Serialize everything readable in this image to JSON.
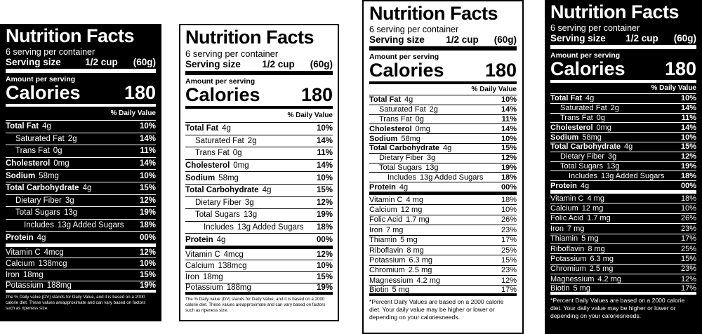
{
  "labels": [
    {
      "variant": "dark",
      "title": "Nutrition Facts",
      "servings": "6 serving per container",
      "serving_size_label": "Serving size",
      "serving_size_value": "1/2 cup",
      "serving_size_grams": "(60g)",
      "amount_per_serving": "Amount per serving",
      "calories_label": "Calories",
      "calories_value": "180",
      "daily_value_header": "% Daily Value",
      "nutrients": [
        {
          "name": "Total Fat",
          "amount": "4g",
          "pct": "10%",
          "bold": true,
          "indent": 0
        },
        {
          "name": "Saturated Fat",
          "amount": "2g",
          "pct": "14%",
          "bold": false,
          "indent": 1
        },
        {
          "name": "Trans Fat",
          "amount": "0g",
          "pct": "11%",
          "bold": false,
          "indent": 1
        },
        {
          "name": "Cholesterol",
          "amount": "0mg",
          "pct": "14%",
          "bold": true,
          "indent": 0
        },
        {
          "name": "Sodium",
          "amount": "58mg",
          "pct": "10%",
          "bold": true,
          "indent": 0
        },
        {
          "name": "Total Carbohydrate",
          "amount": "4g",
          "pct": "15%",
          "bold": true,
          "indent": 0
        },
        {
          "name": "Dietary Fiber",
          "amount": "3g",
          "pct": "12%",
          "bold": false,
          "indent": 1
        },
        {
          "name": "Total Sugars",
          "amount": "13g",
          "pct": "19%",
          "bold": false,
          "indent": 1
        },
        {
          "name": "Includes",
          "amount": "13g Added Sugars",
          "pct": "18%",
          "bold": false,
          "indent": 2
        },
        {
          "name": "Protein",
          "amount": "4g",
          "pct": "00%",
          "bold": true,
          "indent": 0
        }
      ],
      "vitamins": [
        {
          "name": "Vitamin C",
          "amount": "4mcg",
          "pct": "12%"
        },
        {
          "name": "Calcium",
          "amount": "138mcg",
          "pct": "10%"
        },
        {
          "name": "Iron",
          "amount": "18mg",
          "pct": "15%"
        },
        {
          "name": "Potassium",
          "amount": "188mg",
          "pct": "19%"
        }
      ],
      "footnote": "The % Daily value (DV) stands for Daily Value, and it is based on a 2000 calorie diet. These values areapproximate and can vary based on factors such as ripeness size."
    },
    {
      "variant": "light",
      "title": "Nutrition Facts",
      "servings": "6 serving per container",
      "serving_size_label": "Serving size",
      "serving_size_value": "1/2 cup",
      "serving_size_grams": "(60g)",
      "amount_per_serving": "Amount per serving",
      "calories_label": "Calories",
      "calories_value": "180",
      "daily_value_header": "% Daily Value",
      "nutrients": [
        {
          "name": "Total Fat",
          "amount": "4g",
          "pct": "10%",
          "bold": true,
          "indent": 0
        },
        {
          "name": "Saturated Fat",
          "amount": "2g",
          "pct": "14%",
          "bold": false,
          "indent": 1
        },
        {
          "name": "Trans Fat",
          "amount": "0g",
          "pct": "11%",
          "bold": false,
          "indent": 1
        },
        {
          "name": "Cholesterol",
          "amount": "0mg",
          "pct": "14%",
          "bold": true,
          "indent": 0
        },
        {
          "name": "Sodium",
          "amount": "58mg",
          "pct": "10%",
          "bold": true,
          "indent": 0
        },
        {
          "name": "Total Carbohydrate",
          "amount": "4g",
          "pct": "15%",
          "bold": true,
          "indent": 0
        },
        {
          "name": "Dietary Fiber",
          "amount": "3g",
          "pct": "12%",
          "bold": false,
          "indent": 1
        },
        {
          "name": "Total Sugars",
          "amount": "13g",
          "pct": "19%",
          "bold": false,
          "indent": 1
        },
        {
          "name": "Includes",
          "amount": "13g Added Sugars",
          "pct": "18%",
          "bold": false,
          "indent": 2
        },
        {
          "name": "Protein",
          "amount": "4g",
          "pct": "00%",
          "bold": true,
          "indent": 0
        }
      ],
      "vitamins": [
        {
          "name": "Vitamin C",
          "amount": "4mcg",
          "pct": "12%"
        },
        {
          "name": "Calcium",
          "amount": "138mcg",
          "pct": "10%"
        },
        {
          "name": "Iron",
          "amount": "18mg",
          "pct": "15%"
        },
        {
          "name": "Potassium",
          "amount": "188mg",
          "pct": "19%"
        }
      ],
      "footnote": "The % Daily value (DV) stands for Daily Value, and it is based on a 2000 calorie diet. These values areapproximate and can vary based on factors such as ripeness size."
    },
    {
      "variant": "light",
      "title": "Nutrition Facts",
      "servings": "6 serving per container",
      "serving_size_label": "Serving size",
      "serving_size_value": "1/2 cup",
      "serving_size_grams": "(60g)",
      "amount_per_serving": "Amount per serving",
      "calories_label": "Calories",
      "calories_value": "180",
      "daily_value_header": "% Daily Value",
      "nutrients": [
        {
          "name": "Total Fat",
          "amount": "4g",
          "pct": "10%",
          "bold": true,
          "indent": 0
        },
        {
          "name": "Saturated Fat",
          "amount": "2g",
          "pct": "14%",
          "bold": false,
          "indent": 1
        },
        {
          "name": "Trans Fat",
          "amount": "0g",
          "pct": "11%",
          "bold": false,
          "indent": 1
        },
        {
          "name": "Cholesterol",
          "amount": "0mg",
          "pct": "14%",
          "bold": true,
          "indent": 0
        },
        {
          "name": "Sodium",
          "amount": "58mg",
          "pct": "10%",
          "bold": true,
          "indent": 0
        },
        {
          "name": "Total Carbohydrate",
          "amount": "4g",
          "pct": "15%",
          "bold": true,
          "indent": 0
        },
        {
          "name": "Dietary Fiber",
          "amount": "3g",
          "pct": "12%",
          "bold": false,
          "indent": 1
        },
        {
          "name": "Total Sugars",
          "amount": "13g",
          "pct": "19%",
          "bold": false,
          "indent": 1
        },
        {
          "name": "Includes",
          "amount": "13g Added Sugars",
          "pct": "18%",
          "bold": false,
          "indent": 2
        },
        {
          "name": "Protein",
          "amount": "4g",
          "pct": "00%",
          "bold": true,
          "indent": 0
        }
      ],
      "vitamins": [
        {
          "name": "Vitamin C",
          "amount": "4 mg",
          "pct": "18%"
        },
        {
          "name": "Calcium",
          "amount": "12 mg",
          "pct": "10%"
        },
        {
          "name": "Folic Acid",
          "amount": "1.7 mg",
          "pct": "26%"
        },
        {
          "name": "Iron",
          "amount": "7 mg",
          "pct": "23%"
        },
        {
          "name": "Thiamin",
          "amount": "5 mg",
          "pct": "17%"
        },
        {
          "name": "Riboflavin",
          "amount": "8 mg",
          "pct": "25%"
        },
        {
          "name": "Potassium",
          "amount": "6.3 mg",
          "pct": "15%"
        },
        {
          "name": "Chromium",
          "amount": "2.5 mg",
          "pct": "23%"
        },
        {
          "name": "Magnessium",
          "amount": "4.2 mg",
          "pct": "12%"
        },
        {
          "name": "Biotin",
          "amount": "5 mg",
          "pct": "17%"
        }
      ],
      "footnote": "*Percent Daily Values are based on a 2000 calorie diet. Your daily value may be higher or lower or depending on your caloriesneeds."
    },
    {
      "variant": "dark",
      "title": "Nutrition Facts",
      "servings": "6 serving per container",
      "serving_size_label": "Serving size",
      "serving_size_value": "1/2 cup",
      "serving_size_grams": "(60g)",
      "amount_per_serving": "Amount per serving",
      "calories_label": "Calories",
      "calories_value": "180",
      "daily_value_header": "% Daily Value",
      "nutrients": [
        {
          "name": "Total Fat",
          "amount": "4g",
          "pct": "10%",
          "bold": true,
          "indent": 0
        },
        {
          "name": "Saturated Fat",
          "amount": "2g",
          "pct": "14%",
          "bold": false,
          "indent": 1
        },
        {
          "name": "Trans Fat",
          "amount": "0g",
          "pct": "11%",
          "bold": false,
          "indent": 1
        },
        {
          "name": "Cholesterol",
          "amount": "0mg",
          "pct": "14%",
          "bold": true,
          "indent": 0
        },
        {
          "name": "Sodium",
          "amount": "58mg",
          "pct": "10%",
          "bold": true,
          "indent": 0
        },
        {
          "name": "Total Carbohydrate",
          "amount": "4g",
          "pct": "15%",
          "bold": true,
          "indent": 0
        },
        {
          "name": "Dietary Fiber",
          "amount": "3g",
          "pct": "12%",
          "bold": false,
          "indent": 1
        },
        {
          "name": "Total Sugars",
          "amount": "13g",
          "pct": "19%",
          "bold": false,
          "indent": 1
        },
        {
          "name": "Includes",
          "amount": "13g Added Sugars",
          "pct": "18%",
          "bold": false,
          "indent": 2
        },
        {
          "name": "Protein",
          "amount": "4g",
          "pct": "00%",
          "bold": true,
          "indent": 0
        }
      ],
      "vitamins": [
        {
          "name": "Vitamin C",
          "amount": "4 mg",
          "pct": "18%"
        },
        {
          "name": "Calcium",
          "amount": "12 mg",
          "pct": "10%"
        },
        {
          "name": "Folic Acid",
          "amount": "1.7 mg",
          "pct": "26%"
        },
        {
          "name": "Iron",
          "amount": "7 mg",
          "pct": "23%"
        },
        {
          "name": "Thiamin",
          "amount": "5 mg",
          "pct": "17%"
        },
        {
          "name": "Riboflavin",
          "amount": "8 mg",
          "pct": "25%"
        },
        {
          "name": "Potassium",
          "amount": "6.3 mg",
          "pct": "15%"
        },
        {
          "name": "Chromium",
          "amount": "2.5 mg",
          "pct": "23%"
        },
        {
          "name": "Magnessium",
          "amount": "4.2 mg",
          "pct": "12%"
        },
        {
          "name": "Biotin",
          "amount": "5 mg",
          "pct": "17%"
        }
      ],
      "footnote": "*Percent Daily Values are based on a 2000 calorie diet. Your daily value may be higher or lower or depending on your caloriesneeds."
    }
  ]
}
